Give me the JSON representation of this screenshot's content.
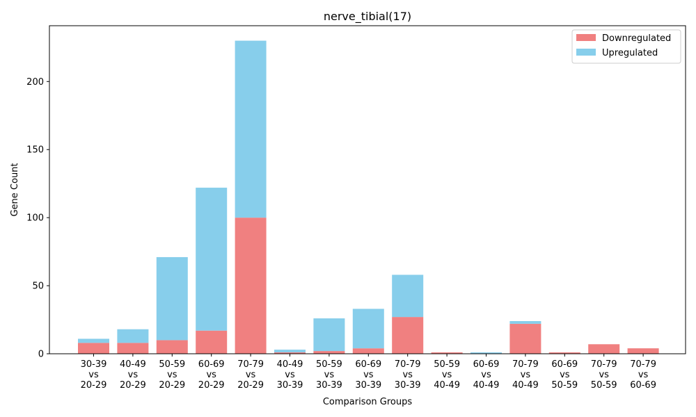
{
  "chart_data": {
    "type": "bar",
    "stacked": true,
    "title": "nerve_tibial(17)",
    "xlabel": "Comparison Groups",
    "ylabel": "Gene Count",
    "ylim": [
      0,
      241
    ],
    "yticks": [
      0,
      50,
      100,
      150,
      200
    ],
    "grid": false,
    "legend_position": "top-right",
    "categories": [
      [
        "30-39",
        "vs",
        "20-29"
      ],
      [
        "40-49",
        "vs",
        "20-29"
      ],
      [
        "50-59",
        "vs",
        "20-29"
      ],
      [
        "60-69",
        "vs",
        "20-29"
      ],
      [
        "70-79",
        "vs",
        "20-29"
      ],
      [
        "40-49",
        "vs",
        "30-39"
      ],
      [
        "50-59",
        "vs",
        "30-39"
      ],
      [
        "60-69",
        "vs",
        "30-39"
      ],
      [
        "70-79",
        "vs",
        "30-39"
      ],
      [
        "50-59",
        "vs",
        "40-49"
      ],
      [
        "60-69",
        "vs",
        "40-49"
      ],
      [
        "70-79",
        "vs",
        "40-49"
      ],
      [
        "60-69",
        "vs",
        "50-59"
      ],
      [
        "70-79",
        "vs",
        "50-59"
      ],
      [
        "70-79",
        "vs",
        "60-69"
      ]
    ],
    "series": [
      {
        "name": "Downregulated",
        "color": "#f08080",
        "values": [
          8,
          8,
          10,
          17,
          100,
          1,
          2,
          4,
          27,
          1,
          0,
          22,
          1,
          7,
          4
        ]
      },
      {
        "name": "Upregulated",
        "color": "#87ceeb",
        "values": [
          3,
          10,
          61,
          105,
          130,
          2,
          24,
          29,
          31,
          0,
          1,
          2,
          0,
          0,
          0
        ]
      }
    ]
  }
}
